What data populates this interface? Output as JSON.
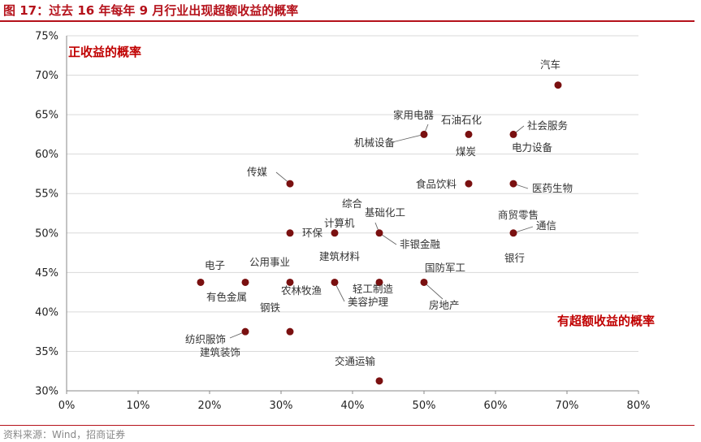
{
  "header": {
    "title": "图 17：过去 16 年每年 9 月行业出现超额收益的概率"
  },
  "footer": {
    "source": "资料来源：Wind，招商证券"
  },
  "colors": {
    "accent": "#b5121b",
    "point": "#7a1010",
    "annotation": "#c00000"
  },
  "chart_data": {
    "type": "scatter",
    "title": "过去 16 年每年 9 月行业出现超额收益的概率",
    "xlabel": "有超额收益的概率",
    "ylabel": "正收益的概率",
    "xlim": [
      0,
      80
    ],
    "ylim": [
      30,
      75
    ],
    "x_ticks": [
      "0%",
      "10%",
      "20%",
      "30%",
      "40%",
      "50%",
      "60%",
      "70%",
      "80%"
    ],
    "y_ticks": [
      "30%",
      "35%",
      "40%",
      "45%",
      "50%",
      "55%",
      "60%",
      "65%",
      "70%",
      "75%"
    ],
    "annotations": [
      "正收益的概率",
      "有超额收益的概率"
    ],
    "points": [
      {
        "label": "汽车",
        "x": 68.75,
        "y": 68.75
      },
      {
        "label": "家用电器",
        "x": 50.0,
        "y": 62.5
      },
      {
        "label": "机械设备",
        "x": 50.0,
        "y": 62.5
      },
      {
        "label": "石油石化",
        "x": 56.25,
        "y": 62.5
      },
      {
        "label": "煤炭",
        "x": 56.25,
        "y": 62.5
      },
      {
        "label": "社会服务",
        "x": 62.5,
        "y": 62.5
      },
      {
        "label": "电力设备",
        "x": 62.5,
        "y": 62.5
      },
      {
        "label": "传媒",
        "x": 31.25,
        "y": 56.25
      },
      {
        "label": "食品饮料",
        "x": 56.25,
        "y": 56.25
      },
      {
        "label": "医药生物",
        "x": 62.5,
        "y": 56.25
      },
      {
        "label": "环保",
        "x": 31.25,
        "y": 50.0
      },
      {
        "label": "计算机",
        "x": 37.5,
        "y": 50.0
      },
      {
        "label": "综合",
        "x": 43.75,
        "y": 50.0
      },
      {
        "label": "基础化工",
        "x": 43.75,
        "y": 50.0
      },
      {
        "label": "非银金融",
        "x": 43.75,
        "y": 50.0
      },
      {
        "label": "商贸零售",
        "x": 62.5,
        "y": 50.0
      },
      {
        "label": "通信",
        "x": 62.5,
        "y": 50.0
      },
      {
        "label": "银行",
        "x": 62.5,
        "y": 50.0
      },
      {
        "label": "电子",
        "x": 18.75,
        "y": 43.75
      },
      {
        "label": "有色金属",
        "x": 25.0,
        "y": 43.75
      },
      {
        "label": "公用事业",
        "x": 31.25,
        "y": 43.75
      },
      {
        "label": "农林牧渔",
        "x": 31.25,
        "y": 43.75
      },
      {
        "label": "建筑材料",
        "x": 37.5,
        "y": 43.75
      },
      {
        "label": "美容护理",
        "x": 37.5,
        "y": 43.75
      },
      {
        "label": "轻工制造",
        "x": 43.75,
        "y": 43.75
      },
      {
        "label": "国防军工",
        "x": 50.0,
        "y": 43.75
      },
      {
        "label": "房地产",
        "x": 50.0,
        "y": 43.75
      },
      {
        "label": "钢铁",
        "x": 31.25,
        "y": 37.5
      },
      {
        "label": "纺织服饰",
        "x": 25.0,
        "y": 37.5
      },
      {
        "label": "建筑装饰",
        "x": 25.0,
        "y": 37.5
      },
      {
        "label": "交通运输",
        "x": 43.75,
        "y": 31.25
      }
    ]
  }
}
